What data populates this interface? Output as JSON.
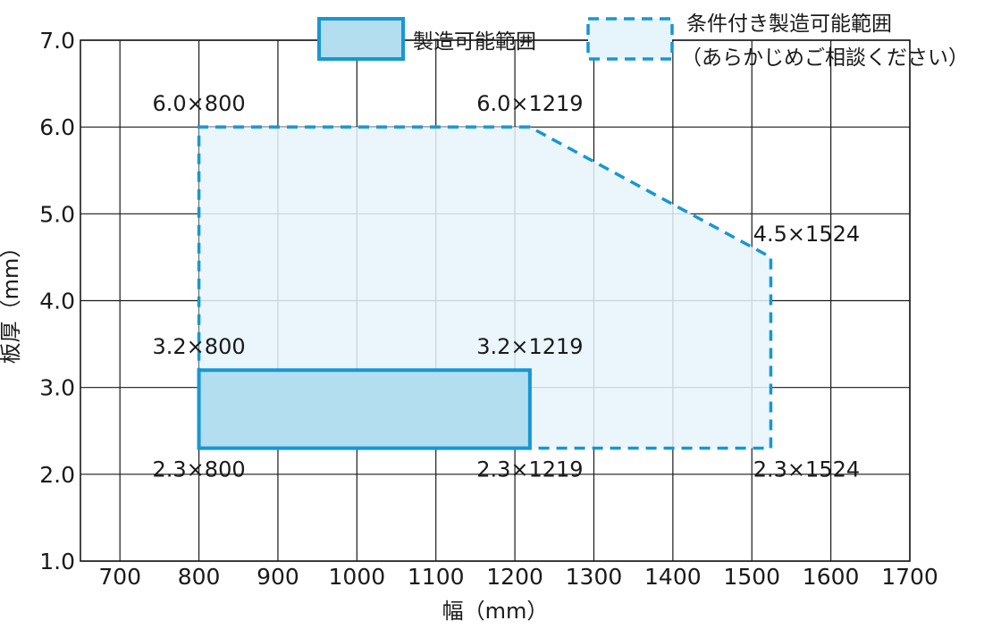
{
  "chart_data": {
    "type": "area",
    "xlabel": "幅（mm）",
    "ylabel": "板厚（mm）",
    "xlim": [
      650,
      1700
    ],
    "ylim": [
      1.0,
      7.0
    ],
    "x_ticks": [
      "700",
      "800",
      "900",
      "1000",
      "1100",
      "1200",
      "1300",
      "1400",
      "1500",
      "1600",
      "1700"
    ],
    "y_ticks": [
      "1.0",
      "2.0",
      "3.0",
      "4.0",
      "5.0",
      "6.0",
      "7.0"
    ],
    "grid": true,
    "legend_position": "top-right",
    "legend": [
      {
        "label": "製造可能範囲",
        "style": "solid"
      },
      {
        "label_line1": "条件付き製造可能範囲",
        "label_line2": "（あらかじめご相談ください）",
        "style": "dashed"
      }
    ],
    "series": [
      {
        "name": "製造可能範囲",
        "polygon": [
          [
            800,
            2.3
          ],
          [
            1219,
            2.3
          ],
          [
            1219,
            3.2
          ],
          [
            800,
            3.2
          ]
        ]
      },
      {
        "name": "条件付き製造可能範囲",
        "polygon": [
          [
            800,
            2.3
          ],
          [
            1524,
            2.3
          ],
          [
            1524,
            4.5
          ],
          [
            1219,
            6.0
          ],
          [
            800,
            6.0
          ]
        ]
      }
    ],
    "annotations": [
      {
        "text": "6.0×800",
        "x": 800,
        "y": 6.0,
        "pos": "above"
      },
      {
        "text": "6.0×1219",
        "x": 1219,
        "y": 6.0,
        "pos": "above"
      },
      {
        "text": "4.5×1524",
        "x": 1524,
        "y": 4.5,
        "pos": "above"
      },
      {
        "text": "3.2×800",
        "x": 800,
        "y": 3.2,
        "pos": "above"
      },
      {
        "text": "3.2×1219",
        "x": 1219,
        "y": 3.2,
        "pos": "above"
      },
      {
        "text": "2.3×800",
        "x": 800,
        "y": 2.3,
        "pos": "below"
      },
      {
        "text": "2.3×1219",
        "x": 1219,
        "y": 2.3,
        "pos": "below"
      },
      {
        "text": "2.3×1524",
        "x": 1524,
        "y": 2.3,
        "pos": "below"
      }
    ],
    "colors": {
      "accent": "#1797d4",
      "fill_solid": "#b3def0",
      "fill_dashed": "#e6f4fb"
    }
  }
}
